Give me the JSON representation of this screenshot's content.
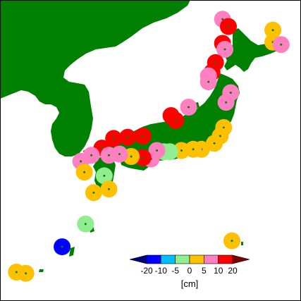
{
  "land_color": "#008000",
  "sea_color": "#ffffff",
  "frame_color": "#000000",
  "legend": {
    "unit_label": "[cm]",
    "range": [
      -25,
      25
    ],
    "tick_labels": [
      "-20",
      "-10",
      "-5",
      "0",
      "5",
      "10",
      "20"
    ],
    "under_color": "#00007d",
    "over_color": "#7d0000",
    "bins": [
      {
        "from": -20,
        "to": -10,
        "color": "#0000ff"
      },
      {
        "from": -10,
        "to": -5,
        "color": "#00bfff"
      },
      {
        "from": -5,
        "to": 0,
        "color": "#90ee90"
      },
      {
        "from": 0,
        "to": 5,
        "color": "#ffc000"
      },
      {
        "from": 5,
        "to": 10,
        "color": "#ff80c0"
      },
      {
        "from": 10,
        "to": 20,
        "color": "#ff0000"
      }
    ]
  },
  "stations": [
    {
      "lon": 141.3,
      "lat": 45.4,
      "value": 7
    },
    {
      "lon": 141.8,
      "lat": 44.8,
      "value": 12
    },
    {
      "lon": 145.6,
      "lat": 44.5,
      "value": 3
    },
    {
      "lon": 145.6,
      "lat": 43.5,
      "value": 3
    },
    {
      "lon": 146.3,
      "lat": 43.3,
      "value": 7
    },
    {
      "lon": 141.3,
      "lat": 43.4,
      "value": 12
    },
    {
      "lon": 141.5,
      "lat": 42.9,
      "value": 7
    },
    {
      "lon": 140.7,
      "lat": 41.8,
      "value": 12
    },
    {
      "lon": 140.4,
      "lat": 41.0,
      "value": 12
    },
    {
      "lon": 140.1,
      "lat": 40.7,
      "value": 7
    },
    {
      "lon": 140.1,
      "lat": 40.2,
      "value": 7
    },
    {
      "lon": 142.0,
      "lat": 39.3,
      "value": 7
    },
    {
      "lon": 141.6,
      "lat": 38.5,
      "value": 7
    },
    {
      "lon": 138.4,
      "lat": 38.1,
      "value": 7
    },
    {
      "lon": 136.9,
      "lat": 37.4,
      "value": 12
    },
    {
      "lon": 137.3,
      "lat": 37.0,
      "value": 12
    },
    {
      "lon": 141.4,
      "lat": 36.4,
      "value": 3
    },
    {
      "lon": 141.1,
      "lat": 35.7,
      "value": 3
    },
    {
      "lon": 140.6,
      "lat": 35.1,
      "value": 3
    },
    {
      "lon": 134.5,
      "lat": 35.7,
      "value": 12
    },
    {
      "lon": 133.2,
      "lat": 35.6,
      "value": 12
    },
    {
      "lon": 132.0,
      "lat": 35.5,
      "value": 12
    },
    {
      "lon": 131.0,
      "lat": 34.7,
      "value": 12
    },
    {
      "lon": 139.5,
      "lat": 34.6,
      "value": 3
    },
    {
      "lon": 138.8,
      "lat": 34.6,
      "value": 3
    },
    {
      "lon": 137.8,
      "lat": 34.5,
      "value": 3
    },
    {
      "lon": 136.8,
      "lat": 34.4,
      "value": -3
    },
    {
      "lon": 136.3,
      "lat": 34.4,
      "value": -3
    },
    {
      "lon": 135.7,
      "lat": 34.5,
      "value": 7
    },
    {
      "lon": 135.2,
      "lat": 33.8,
      "value": 7
    },
    {
      "lon": 134.5,
      "lat": 33.9,
      "value": 12
    },
    {
      "lon": 133.5,
      "lat": 34.0,
      "value": 3
    },
    {
      "lon": 132.5,
      "lat": 34.2,
      "value": 7
    },
    {
      "lon": 131.6,
      "lat": 34.1,
      "value": 7
    },
    {
      "lon": 130.1,
      "lat": 34.1,
      "value": 7
    },
    {
      "lon": 129.2,
      "lat": 33.6,
      "value": 7
    },
    {
      "lon": 129.5,
      "lat": 32.7,
      "value": 3
    },
    {
      "lon": 131.2,
      "lat": 32.4,
      "value": -3
    },
    {
      "lon": 131.6,
      "lat": 31.3,
      "value": 3
    },
    {
      "lon": 130.3,
      "lat": 31.0,
      "value": 3
    },
    {
      "lon": 129.6,
      "lat": 28.4,
      "value": -3
    },
    {
      "lon": 127.6,
      "lat": 26.5,
      "value": -15
    },
    {
      "lon": 142.1,
      "lat": 27.0,
      "value": 3
    },
    {
      "lon": 123.7,
      "lat": 24.4,
      "value": 3
    },
    {
      "lon": 124.5,
      "lat": 24.3,
      "value": 3
    }
  ]
}
